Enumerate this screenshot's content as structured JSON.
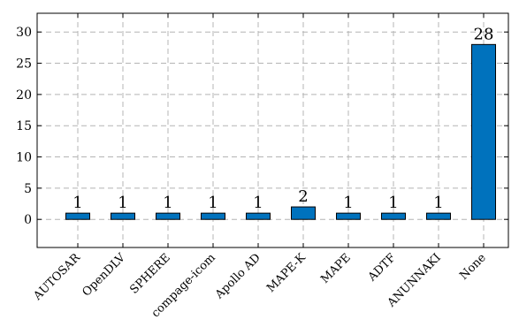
{
  "chart_data": {
    "type": "bar",
    "title": "",
    "xlabel": "",
    "ylabel": "",
    "categories": [
      "AUTOSAR",
      "OpenDLV",
      "SPHERE",
      "compage-icom",
      "Apollo AD",
      "MAPE-K",
      "MAPE",
      "ADTF",
      "ANUNNAKI",
      "None"
    ],
    "values": [
      1,
      1,
      1,
      1,
      1,
      2,
      1,
      1,
      1,
      28
    ],
    "data_labels": [
      "1",
      "1",
      "1",
      "1",
      "1",
      "2",
      "1",
      "1",
      "1",
      "28"
    ],
    "ylim": [
      -4.5,
      33
    ],
    "yticks": [
      0,
      5,
      10,
      15,
      20,
      25,
      30
    ],
    "ytick_labels": [
      "0",
      "5",
      "10",
      "15",
      "20",
      "25",
      "30"
    ],
    "grid": true,
    "legend": "none",
    "bar_color": "#0072BD"
  }
}
